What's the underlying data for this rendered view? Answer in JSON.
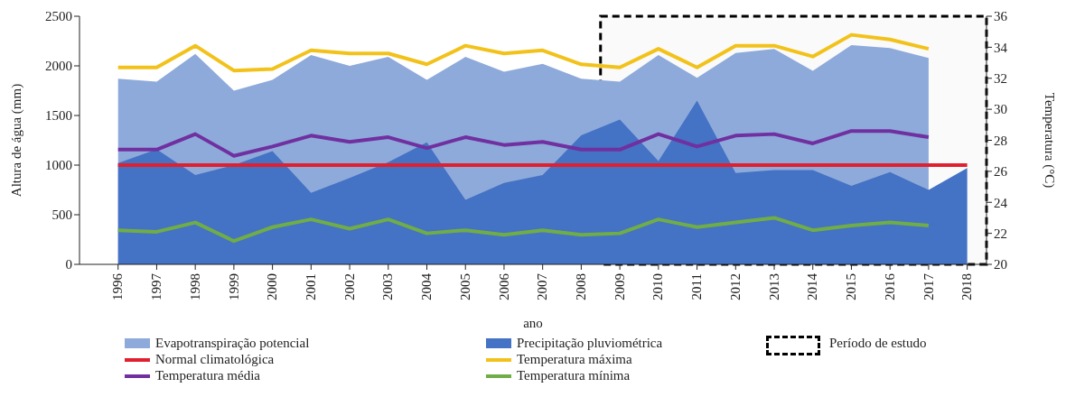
{
  "chart_data": {
    "type": "line",
    "xlabel": "ano",
    "ylabel": "Altura de água (mm)",
    "y2label": "Temperatura (°C)",
    "x": [
      1996,
      1997,
      1998,
      1999,
      2000,
      2001,
      2002,
      2003,
      2004,
      2005,
      2006,
      2007,
      2008,
      2009,
      2010,
      2011,
      2012,
      2013,
      2014,
      2015,
      2016,
      2017,
      2018
    ],
    "xlim": [
      1995,
      2018.5
    ],
    "xticks": [
      1996,
      1997,
      1998,
      1999,
      2000,
      2001,
      2002,
      2003,
      2004,
      2005,
      2006,
      2007,
      2008,
      2009,
      2010,
      2011,
      2012,
      2013,
      2014,
      2015,
      2016,
      2017,
      2018
    ],
    "ylim": [
      0,
      2500
    ],
    "yticks": [
      0,
      500,
      1000,
      1500,
      2000,
      2500
    ],
    "y2lim": [
      20,
      36
    ],
    "y2ticks": [
      20,
      22,
      24,
      26,
      28,
      30,
      32,
      34,
      36
    ],
    "series": [
      {
        "name": "Evapotranspiração potencial",
        "type": "area",
        "color": "#8eaadb",
        "values": [
          1870,
          1840,
          2120,
          1750,
          1860,
          2110,
          2000,
          2090,
          1860,
          2090,
          1940,
          2020,
          1870,
          1840,
          2110,
          1880,
          2130,
          2170,
          1950,
          2210,
          2180,
          2080,
          null
        ]
      },
      {
        "name": "Precipitação pluviométrica",
        "type": "area",
        "color": "#4472c4",
        "values": [
          1020,
          1160,
          900,
          1000,
          1140,
          720,
          870,
          1030,
          1230,
          650,
          820,
          900,
          1300,
          1460,
          1040,
          1650,
          920,
          950,
          950,
          790,
          930,
          750,
          970
        ]
      },
      {
        "name": "Normal climatológica",
        "type": "line",
        "color": "#e0202e",
        "values": [
          1000,
          1000,
          1000,
          1000,
          1000,
          1000,
          1000,
          1000,
          1000,
          1000,
          1000,
          1000,
          1000,
          1000,
          1000,
          1000,
          1000,
          1000,
          1000,
          1000,
          1000,
          1000,
          1000
        ]
      },
      {
        "name": "Temperatura máxima",
        "type": "line",
        "axis": "y2",
        "color": "#f2c21b",
        "values": [
          32.7,
          32.7,
          34.1,
          32.5,
          32.6,
          33.8,
          33.6,
          33.6,
          32.9,
          34.1,
          33.6,
          33.8,
          32.9,
          32.7,
          33.9,
          32.7,
          34.1,
          34.1,
          33.4,
          34.8,
          34.5,
          33.9,
          null
        ]
      },
      {
        "name": "Temperatura média",
        "type": "line",
        "axis": "y2",
        "color": "#7030a0",
        "values": [
          27.4,
          27.4,
          28.4,
          27.0,
          27.6,
          28.3,
          27.9,
          28.2,
          27.5,
          28.2,
          27.7,
          27.9,
          27.4,
          27.4,
          28.4,
          27.6,
          28.3,
          28.4,
          27.8,
          28.6,
          28.6,
          28.2,
          null
        ]
      },
      {
        "name": "Temperatura mínima",
        "type": "line",
        "axis": "y2",
        "color": "#70ad47",
        "values": [
          22.2,
          22.1,
          22.7,
          21.5,
          22.4,
          22.9,
          22.3,
          22.9,
          22.0,
          22.2,
          21.9,
          22.2,
          21.9,
          22.0,
          22.9,
          22.4,
          22.7,
          23.0,
          22.2,
          22.5,
          22.7,
          22.5,
          null
        ]
      }
    ],
    "bands": [
      {
        "axis": "x",
        "from": 2008.5,
        "to": 2018.5,
        "label": "Período de estudo",
        "color": "#000000"
      }
    ],
    "marker": "none",
    "grid": false,
    "legend": "bottom"
  }
}
